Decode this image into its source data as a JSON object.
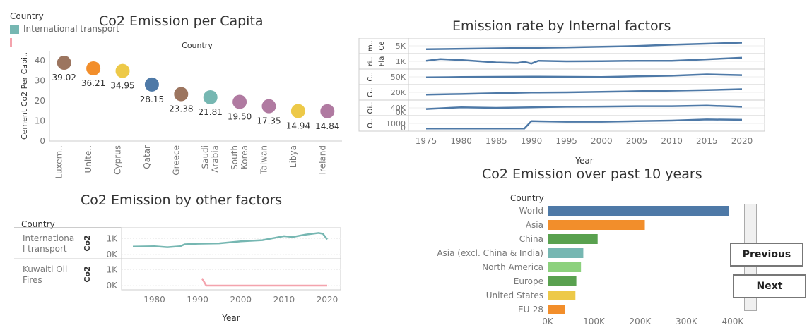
{
  "legend": {
    "title": "Country",
    "items": [
      {
        "label": "International transport",
        "color": "#76b7b2"
      },
      {
        "label": "",
        "color": "#f4a3ad"
      }
    ]
  },
  "nav": {
    "previous": "Previous",
    "next": "Next"
  },
  "chart_data": [
    {
      "id": "percapita",
      "type": "scatter",
      "title": "Co2 Emission per Capita",
      "header": "Country",
      "ylabel": "Cement Co2 Per Capi..",
      "ylim": [
        0,
        45
      ],
      "yticks": [
        0,
        10,
        20,
        30,
        40
      ],
      "categories": [
        "Luxem..",
        "Unite..",
        "Cyprus",
        "Qatar",
        "Greece",
        "Saudi Arabia",
        "South Korea",
        "Taiwan",
        "Libya",
        "Ireland"
      ],
      "category_lines": [
        [
          "Luxem.."
        ],
        [
          "Unite.."
        ],
        [
          "Cyprus"
        ],
        [
          "Qatar"
        ],
        [
          "Greece"
        ],
        [
          "Saudi",
          "Arabia"
        ],
        [
          "South",
          "Korea"
        ],
        [
          "Taiwan"
        ],
        [
          "Libya"
        ],
        [
          "Ireland"
        ]
      ],
      "values": [
        39.02,
        36.21,
        34.95,
        28.15,
        23.38,
        21.81,
        19.5,
        17.35,
        14.94,
        14.84
      ],
      "value_labels": [
        "39.02",
        "36.21",
        "34.95",
        "28.15",
        "23.38",
        "21.81",
        "19.50",
        "17.35",
        "14.94",
        "14.84"
      ],
      "colors": [
        "#9c755f",
        "#f28e2b",
        "#edc948",
        "#4e79a7",
        "#9c755f",
        "#76b7b2",
        "#b07aa1",
        "#b07aa1",
        "#edc948",
        "#b07aa1"
      ]
    },
    {
      "id": "internal",
      "type": "line",
      "title": "Emission rate by Internal factors",
      "xlabel": "Year",
      "xlim": [
        1975,
        2020
      ],
      "xticks": [
        1975,
        1980,
        1985,
        1990,
        1995,
        2000,
        2005,
        2010,
        2015,
        2020
      ],
      "color": "#4e79a7",
      "rows": [
        {
          "labels": [
            "m..",
            "Ce"
          ],
          "ticks": [
            "5K"
          ],
          "values": [
            [
              1975,
              0.2
            ],
            [
              1985,
              0.28
            ],
            [
              1995,
              0.36
            ],
            [
              2005,
              0.48
            ],
            [
              2010,
              0.6
            ],
            [
              2020,
              0.78
            ]
          ]
        },
        {
          "labels": [
            "ri..",
            "Fla"
          ],
          "ticks": [
            "1K"
          ],
          "values": [
            [
              1975,
              0.55
            ],
            [
              1977,
              0.7
            ],
            [
              1980,
              0.62
            ],
            [
              1985,
              0.4
            ],
            [
              1988,
              0.35
            ],
            [
              1989,
              0.45
            ],
            [
              1990,
              0.3
            ],
            [
              1991,
              0.55
            ],
            [
              1995,
              0.5
            ],
            [
              2000,
              0.52
            ],
            [
              2005,
              0.55
            ],
            [
              2010,
              0.55
            ],
            [
              2015,
              0.68
            ],
            [
              2020,
              0.82
            ]
          ]
        },
        {
          "labels": [
            "C.."
          ],
          "ticks": [
            "50K"
          ],
          "values": [
            [
              1975,
              0.45
            ],
            [
              1980,
              0.48
            ],
            [
              1990,
              0.52
            ],
            [
              2000,
              0.48
            ],
            [
              2005,
              0.55
            ],
            [
              2010,
              0.6
            ],
            [
              2015,
              0.72
            ],
            [
              2020,
              0.65
            ]
          ]
        },
        {
          "labels": [
            "G.."
          ],
          "ticks": [
            "20K"
          ],
          "values": [
            [
              1975,
              0.3
            ],
            [
              1980,
              0.35
            ],
            [
              1985,
              0.42
            ],
            [
              1990,
              0.48
            ],
            [
              1995,
              0.5
            ],
            [
              2000,
              0.55
            ],
            [
              2005,
              0.6
            ],
            [
              2010,
              0.65
            ],
            [
              2015,
              0.7
            ],
            [
              2020,
              0.78
            ]
          ]
        },
        {
          "labels": [
            "Oi.."
          ],
          "ticks": [
            "40K",
            "0K"
          ],
          "values": [
            [
              1975,
              0.4
            ],
            [
              1980,
              0.55
            ],
            [
              1985,
              0.5
            ],
            [
              1990,
              0.55
            ],
            [
              1995,
              0.6
            ],
            [
              2000,
              0.62
            ],
            [
              2005,
              0.65
            ],
            [
              2010,
              0.65
            ],
            [
              2015,
              0.7
            ],
            [
              2020,
              0.6
            ]
          ]
        },
        {
          "labels": [
            "O.."
          ],
          "ticks": [
            "1000",
            "0"
          ],
          "values": [
            [
              1975,
              0.05
            ],
            [
              1989,
              0.05
            ],
            [
              1990,
              0.7
            ],
            [
              1995,
              0.65
            ],
            [
              2000,
              0.65
            ],
            [
              2005,
              0.7
            ],
            [
              2010,
              0.75
            ],
            [
              2015,
              0.85
            ],
            [
              2020,
              0.82
            ]
          ]
        }
      ]
    },
    {
      "id": "other",
      "type": "line",
      "title": "Co2 Emission by other factors",
      "header": "Country",
      "xlabel": "Year",
      "xlim": [
        1975,
        2020
      ],
      "xticks": [
        1980,
        1990,
        2000,
        2010,
        2020
      ],
      "ylabel": "Co2",
      "rows": [
        {
          "name": "Internationa l transport",
          "name_lines": [
            "Internationa",
            "l transport"
          ],
          "color": "#76b7b2",
          "ylim": [
            0,
            1500
          ],
          "yticks": [
            0,
            1000
          ],
          "ytick_labels": [
            "0K",
            "1K"
          ],
          "values": [
            [
              1975,
              500
            ],
            [
              1980,
              520
            ],
            [
              1983,
              460
            ],
            [
              1986,
              520
            ],
            [
              1987,
              640
            ],
            [
              1990,
              680
            ],
            [
              1995,
              700
            ],
            [
              2000,
              830
            ],
            [
              2005,
              900
            ],
            [
              2008,
              1050
            ],
            [
              2010,
              1150
            ],
            [
              2012,
              1100
            ],
            [
              2015,
              1250
            ],
            [
              2018,
              1350
            ],
            [
              2019,
              1300
            ],
            [
              2020,
              950
            ]
          ]
        },
        {
          "name": "Kuwaiti Oil Fires",
          "name_lines": [
            "Kuwaiti Oil",
            "Fires"
          ],
          "color": "#f4a3ad",
          "ylim": [
            0,
            1500
          ],
          "yticks": [
            0,
            1000
          ],
          "ytick_labels": [
            "0K",
            "1K"
          ],
          "values": [
            [
              1991,
              450
            ],
            [
              1992,
              0
            ],
            [
              2020,
              0
            ]
          ]
        }
      ]
    },
    {
      "id": "past10",
      "type": "bar",
      "title": "Co2 Emission over past 10 years",
      "header": "Country",
      "xlim": [
        0,
        420000
      ],
      "xticks": [
        0,
        100000,
        200000,
        300000,
        400000
      ],
      "xtick_labels": [
        "0K",
        "100K",
        "200K",
        "300K",
        "400K"
      ],
      "categories": [
        "World",
        "Asia",
        "China",
        "Asia (excl. China & India)",
        "North America",
        "Europe",
        "United States",
        "EU-28"
      ],
      "values": [
        392000,
        210000,
        108000,
        77000,
        72000,
        62000,
        60000,
        38000
      ],
      "colors": [
        "#4e79a7",
        "#f28e2b",
        "#59a14f",
        "#76b7b2",
        "#8cd17d",
        "#59a14f",
        "#edc948",
        "#f28e2b"
      ]
    }
  ]
}
